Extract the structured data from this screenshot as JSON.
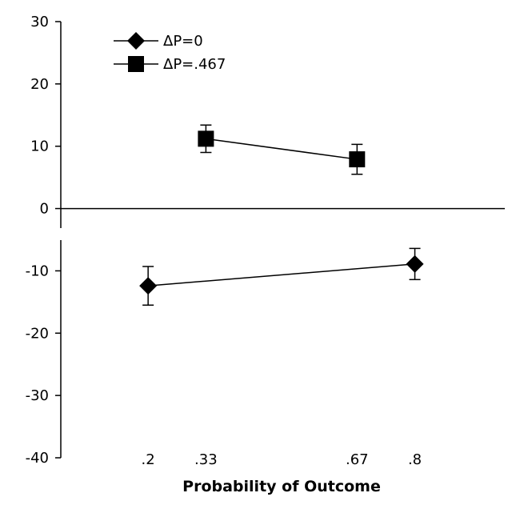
{
  "chart_data": {
    "type": "line",
    "title": "",
    "xlabel": "Probability of Outcome",
    "ylabel": "",
    "ylim": [
      -40,
      30
    ],
    "yticks": [
      30,
      20,
      10,
      0,
      -10,
      -20,
      -30,
      -40
    ],
    "ytick_labels": [
      "30",
      "20",
      "10",
      "0",
      "-10",
      "-20",
      "-30",
      "-40"
    ],
    "x_ticks": [
      0.2,
      0.33,
      0.67,
      0.8
    ],
    "x_tick_labels": [
      ".2",
      ".33",
      ".67",
      ".8"
    ],
    "grid": false,
    "legend_position": "top-left",
    "series": [
      {
        "name": "ΔP=0",
        "marker": "diamond",
        "color": "#000000",
        "x": [
          0.2,
          0.8
        ],
        "y": [
          -12.4,
          -8.9
        ],
        "err_low": [
          3.1,
          2.5
        ],
        "err_high": [
          3.1,
          2.5
        ]
      },
      {
        "name": "ΔP=.467",
        "marker": "square",
        "color": "#000000",
        "x": [
          0.33,
          0.67
        ],
        "y": [
          11.2,
          7.9
        ],
        "err_low": [
          2.2,
          2.4
        ],
        "err_high": [
          2.2,
          2.4
        ]
      }
    ]
  }
}
